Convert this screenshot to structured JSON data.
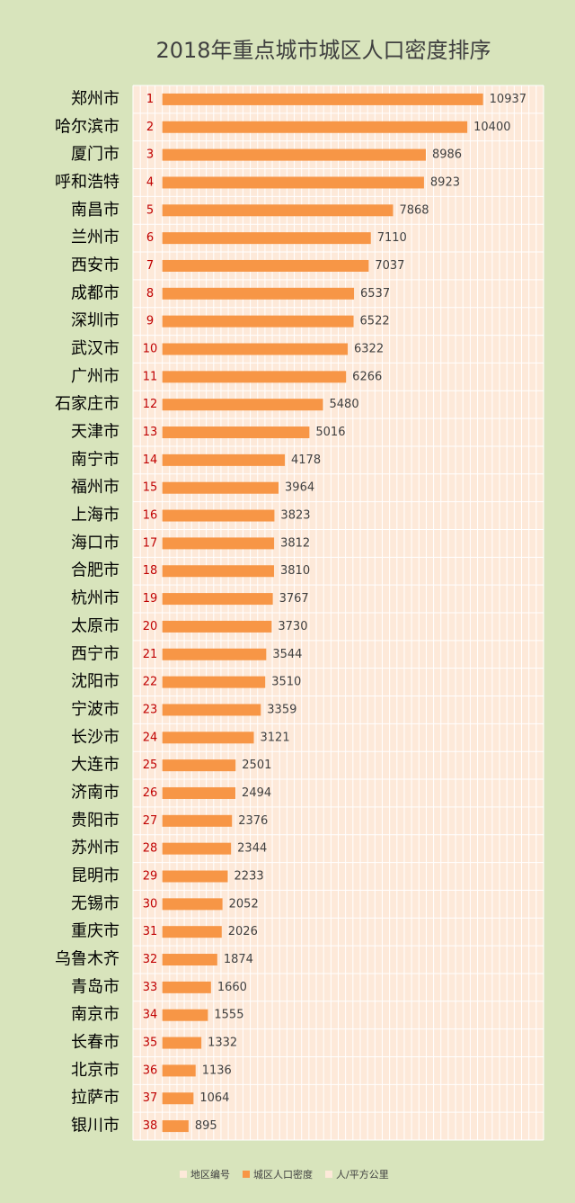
{
  "chart_data": {
    "type": "bar",
    "orientation": "horizontal",
    "title": "2018年重点城市城区人口密度排序",
    "categories": [
      "郑州市",
      "哈尔滨市",
      "厦门市",
      "呼和浩特",
      "南昌市",
      "兰州市",
      "西安市",
      "成都市",
      "深圳市",
      "武汉市",
      "广州市",
      "石家庄市",
      "天津市",
      "南宁市",
      "福州市",
      "上海市",
      "海口市",
      "合肥市",
      "杭州市",
      "太原市",
      "西宁市",
      "沈阳市",
      "宁波市",
      "长沙市",
      "大连市",
      "济南市",
      "贵阳市",
      "苏州市",
      "昆明市",
      "无锡市",
      "重庆市",
      "乌鲁木齐",
      "青岛市",
      "南京市",
      "长春市",
      "北京市",
      "拉萨市",
      "银川市"
    ],
    "series": [
      {
        "name": "地区编号",
        "color": "#c00000",
        "values": [
          1,
          2,
          3,
          4,
          5,
          6,
          7,
          8,
          9,
          10,
          11,
          12,
          13,
          14,
          15,
          16,
          17,
          18,
          19,
          20,
          21,
          22,
          23,
          24,
          25,
          26,
          27,
          28,
          29,
          30,
          31,
          32,
          33,
          34,
          35,
          36,
          37,
          38
        ]
      },
      {
        "name": "城区人口密度",
        "color": "#f79646",
        "values": [
          10937,
          10400,
          8986,
          8923,
          7868,
          7110,
          7037,
          6537,
          6522,
          6322,
          6266,
          5480,
          5016,
          4178,
          3964,
          3823,
          3812,
          3810,
          3767,
          3730,
          3544,
          3510,
          3359,
          3121,
          2501,
          2494,
          2376,
          2344,
          2233,
          2052,
          2026,
          1874,
          1660,
          1555,
          1332,
          1136,
          1064,
          895
        ]
      }
    ],
    "legend": [
      {
        "name": "地区编号",
        "color": "#fde9d9"
      },
      {
        "name": "城区人口密度",
        "color": "#f79646"
      },
      {
        "name": "人/平方公里",
        "color": "#fde9d9"
      }
    ],
    "xlim": [
      -1000,
      13000
    ],
    "xticks": [
      -1000,
      -750,
      -500,
      -250,
      0,
      250,
      500,
      750,
      1000,
      1250,
      1500,
      1750,
      2000,
      2250,
      2500,
      2750,
      3000,
      3250,
      3500,
      3750,
      4000,
      4250,
      4500,
      4750,
      5000,
      5250,
      5500,
      5750,
      6000,
      6250,
      6500,
      6750,
      7000,
      7250,
      7500,
      7750,
      8000,
      8250,
      8500,
      8750,
      9000,
      9250,
      9500,
      9750,
      10000,
      10250,
      10500,
      10750,
      11000,
      11250,
      11500,
      11750,
      12000,
      12250,
      12500,
      12750,
      13000
    ],
    "grid": true
  }
}
